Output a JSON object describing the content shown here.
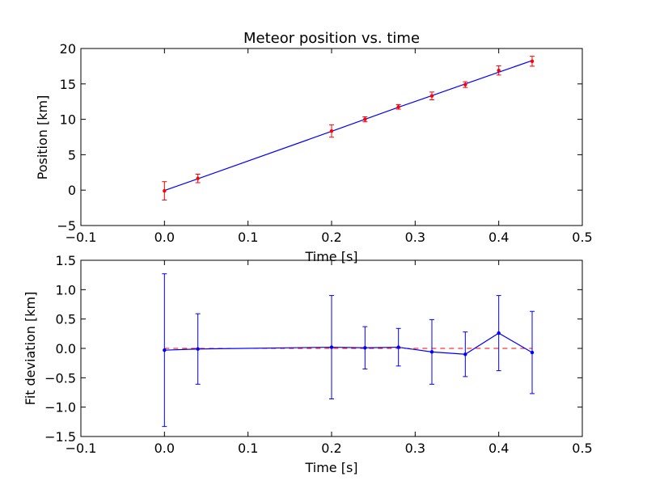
{
  "chart_data": [
    {
      "type": "scatter",
      "title": "Meteor position vs. time",
      "xlabel": "Time [s]",
      "ylabel": "Position [km]",
      "xlim": [
        -0.1,
        0.5
      ],
      "ylim": [
        -5,
        20
      ],
      "xticks": [
        "−0.1",
        "0.0",
        "0.1",
        "0.2",
        "0.3",
        "0.4",
        "0.5"
      ],
      "yticks": [
        "−5",
        "0",
        "5",
        "10",
        "15",
        "20"
      ],
      "series": [
        {
          "kind": "measured-points-with-errorbars",
          "color": "#ff0000",
          "x": [
            0.0,
            0.04,
            0.2,
            0.24,
            0.28,
            0.32,
            0.36,
            0.4,
            0.44
          ],
          "y": [
            -0.1,
            1.65,
            8.35,
            10.0,
            11.75,
            13.3,
            14.9,
            16.9,
            18.2
          ],
          "yerr": [
            1.3,
            0.6,
            0.88,
            0.35,
            0.32,
            0.55,
            0.4,
            0.65,
            0.7
          ]
        },
        {
          "kind": "linear-fit-line",
          "color": "#0000ff",
          "x": [
            0.0,
            0.04,
            0.2,
            0.24,
            0.28,
            0.32,
            0.36,
            0.4,
            0.44
          ],
          "y": [
            -0.05,
            1.6,
            8.3,
            10.0,
            11.7,
            13.35,
            15.0,
            16.65,
            18.3
          ]
        }
      ],
      "grid": false
    },
    {
      "type": "line",
      "title": "",
      "xlabel": "Time [s]",
      "ylabel": "Fit deviation [km]",
      "xlim": [
        -0.1,
        0.5
      ],
      "ylim": [
        -1.5,
        1.5
      ],
      "xticks": [
        "−0.1",
        "0.0",
        "0.1",
        "0.2",
        "0.3",
        "0.4",
        "0.5"
      ],
      "yticks": [
        "−1.5",
        "−1.0",
        "−0.5",
        "0.0",
        "0.5",
        "1.0",
        "1.5"
      ],
      "series": [
        {
          "kind": "deviation-with-errorbars",
          "color": "#0000ff",
          "x": [
            0.0,
            0.04,
            0.2,
            0.24,
            0.28,
            0.32,
            0.36,
            0.4,
            0.44
          ],
          "y": [
            -0.03,
            -0.01,
            0.02,
            0.01,
            0.02,
            -0.06,
            -0.1,
            0.26,
            -0.07
          ],
          "yerr": [
            1.3,
            0.6,
            0.88,
            0.36,
            0.32,
            0.55,
            0.38,
            0.64,
            0.7
          ]
        },
        {
          "kind": "zero-reference-line",
          "color": "#ff0000",
          "style": "dashed",
          "x": [
            0.0,
            0.44
          ],
          "y": [
            0.0,
            0.0
          ]
        }
      ],
      "grid": false
    }
  ]
}
